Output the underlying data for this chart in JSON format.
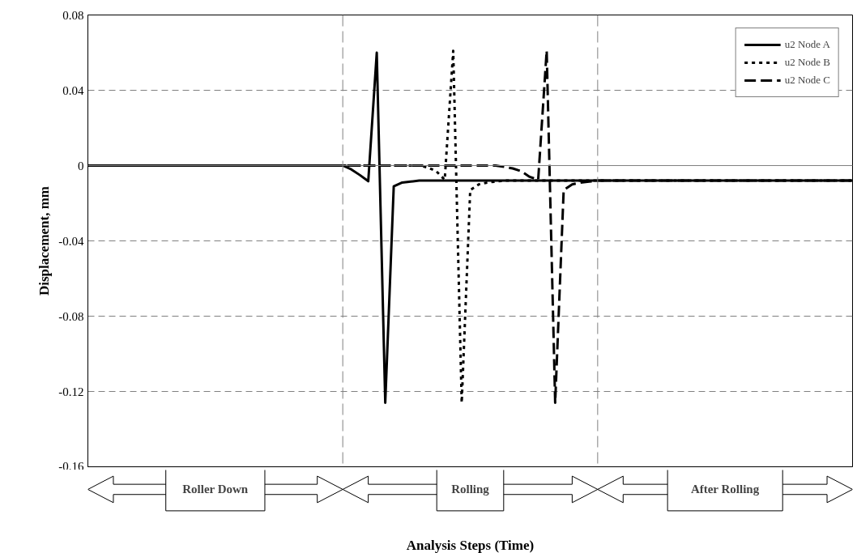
{
  "chart_data": {
    "type": "line",
    "xlabel": "Analysis Steps (Time)",
    "ylabel": "Displacement, mm",
    "categories": [
      null,
      null,
      null,
      null,
      null,
      null,
      null,
      null,
      null,
      null,
      null,
      null,
      null,
      null,
      null,
      null,
      null,
      null,
      null,
      null,
      null,
      null,
      null,
      null,
      null,
      null,
      null,
      null,
      null,
      null,
      null,
      null,
      null,
      null,
      null,
      null,
      null,
      null,
      null,
      null,
      null,
      null,
      null,
      null,
      null,
      null,
      null,
      null,
      null,
      null,
      null,
      null,
      null,
      null,
      null,
      null,
      null,
      null,
      null,
      null,
      null,
      null,
      null,
      null,
      null,
      null,
      null,
      null,
      null,
      null,
      null,
      null,
      null,
      null,
      null,
      null,
      null,
      null,
      null,
      null,
      null,
      null,
      null,
      null,
      null,
      null,
      null,
      null,
      null,
      null,
      null
    ],
    "ylim": [
      -0.16,
      0.08
    ],
    "yticks": [
      -0.16,
      -0.12,
      -0.08,
      -0.04,
      0,
      0.04,
      0.08
    ],
    "tick_labels": "y",
    "grid": "y",
    "legend": "top right",
    "marker": "none",
    "series": [
      {
        "name": "u2 Node A",
        "color": "#000000",
        "line_style": "solid",
        "values": [
          0,
          0,
          0,
          0,
          0,
          0,
          0,
          0,
          0,
          0,
          0,
          0,
          0,
          0,
          0,
          0,
          0,
          0,
          0,
          0,
          0,
          0,
          0,
          0,
          0,
          0,
          0,
          0,
          0,
          0,
          0,
          -0.002,
          -0.005,
          -0.0083,
          0.06,
          -0.126,
          -0.011,
          -0.009,
          -0.0085,
          -0.008,
          -0.008,
          -0.008,
          -0.008,
          -0.008,
          -0.008,
          -0.008,
          -0.008,
          -0.008,
          -0.008,
          -0.008,
          -0.008,
          -0.008,
          -0.008,
          -0.008,
          -0.008,
          -0.008,
          -0.008,
          -0.008,
          -0.008,
          -0.008,
          -0.008,
          -0.008,
          -0.008,
          -0.008,
          -0.008,
          -0.008,
          -0.008,
          -0.008,
          -0.008,
          -0.008,
          -0.008,
          -0.008,
          -0.008,
          -0.008,
          -0.008,
          -0.008,
          -0.008,
          -0.008,
          -0.008,
          -0.008,
          -0.008,
          -0.008,
          -0.008,
          -0.008,
          -0.008,
          -0.008,
          -0.008,
          -0.008,
          -0.008,
          -0.008,
          -0.008
        ]
      },
      {
        "name": "u2 Node B",
        "color": "#000000",
        "line_style": "dotted",
        "values": [
          0,
          0,
          0,
          0,
          0,
          0,
          0,
          0,
          0,
          0,
          0,
          0,
          0,
          0,
          0,
          0,
          0,
          0,
          0,
          0,
          0,
          0,
          0,
          0,
          0,
          0,
          0,
          0,
          0,
          0,
          0,
          0,
          0,
          0,
          0,
          0,
          0,
          0,
          0,
          0,
          -0.001,
          -0.003,
          -0.0075,
          0.061,
          -0.126,
          -0.013,
          -0.01,
          -0.009,
          -0.0085,
          -0.008,
          -0.008,
          -0.008,
          -0.008,
          -0.008,
          -0.008,
          -0.008,
          -0.008,
          -0.008,
          -0.008,
          -0.008,
          -0.008,
          -0.008,
          -0.008,
          -0.008,
          -0.008,
          -0.008,
          -0.008,
          -0.008,
          -0.008,
          -0.008,
          -0.008,
          -0.008,
          -0.008,
          -0.008,
          -0.008,
          -0.008,
          -0.008,
          -0.008,
          -0.008,
          -0.008,
          -0.008,
          -0.008,
          -0.008,
          -0.008,
          -0.008,
          -0.008,
          -0.008,
          -0.008,
          -0.008,
          -0.008,
          -0.008
        ]
      },
      {
        "name": "u2 Node C",
        "color": "#000000",
        "line_style": "dashed",
        "values": [
          0,
          0,
          0,
          0,
          0,
          0,
          0,
          0,
          0,
          0,
          0,
          0,
          0,
          0,
          0,
          0,
          0,
          0,
          0,
          0,
          0,
          0,
          0,
          0,
          0,
          0,
          0,
          0,
          0,
          0,
          0,
          0,
          0,
          0,
          0,
          0,
          0,
          0,
          0,
          0,
          0,
          0,
          0,
          0,
          0,
          0,
          0,
          0,
          0,
          -0.0007,
          -0.0015,
          -0.003,
          -0.006,
          -0.0075,
          0.061,
          -0.126,
          -0.013,
          -0.01,
          -0.009,
          -0.0085,
          -0.008,
          -0.008,
          -0.008,
          -0.008,
          -0.008,
          -0.008,
          -0.008,
          -0.008,
          -0.008,
          -0.008,
          -0.008,
          -0.008,
          -0.008,
          -0.008,
          -0.008,
          -0.008,
          -0.008,
          -0.008,
          -0.008,
          -0.008,
          -0.008,
          -0.008,
          -0.008,
          -0.008,
          -0.008,
          -0.008,
          -0.008,
          -0.008,
          -0.008,
          -0.008,
          -0.008
        ]
      }
    ],
    "ref_lines": [
      {
        "axis": "y",
        "value": 0,
        "color": "#808080",
        "line_style": "solid"
      }
    ],
    "annotations": [
      "Roller Down",
      "Rolling",
      "After Rolling"
    ]
  }
}
